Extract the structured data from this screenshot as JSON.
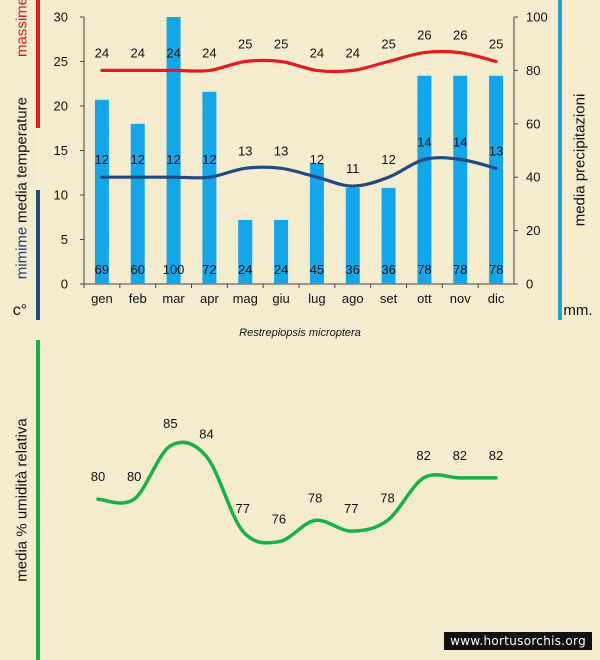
{
  "caption": "Restrepiopsis microptera",
  "credit": "www.hortusorchis.org",
  "climate_chart": {
    "left_axis_labels": {
      "max": "massime",
      "mean": "media  temperature",
      "min": "mimime",
      "unit": "c°"
    },
    "right_axis_labels": {
      "mean": "media  precipitazioni",
      "unit": "mm."
    }
  },
  "humidity_chart": {
    "ylabel": "media %  umidità relativa"
  },
  "colors": {
    "background": "#f7efd2",
    "bars": "#13a7ea",
    "max_line": "#e31d1d",
    "min_line": "#214a83",
    "humidity_line": "#16b246",
    "max_marker": "#d81c1c",
    "min_marker": "#1f3f7a",
    "precip_marker": "#1ea2d8",
    "humidity_marker": "#1eae46"
  },
  "chart_data": [
    {
      "type": "bar",
      "title": "",
      "categories": [
        "gen",
        "feb",
        "mar",
        "apr",
        "mag",
        "giu",
        "lug",
        "ago",
        "set",
        "ott",
        "nov",
        "dic"
      ],
      "series": [
        {
          "name": "precipitazioni (mm)",
          "axis": "right",
          "type": "bar",
          "values": [
            69,
            60,
            100,
            72,
            24,
            24,
            45,
            36,
            36,
            78,
            78,
            78
          ]
        },
        {
          "name": "temperature massime (°C)",
          "axis": "left",
          "type": "line",
          "values": [
            24,
            24,
            24,
            24,
            25,
            25,
            24,
            24,
            25,
            26,
            26,
            25
          ]
        },
        {
          "name": "temperature minime (°C)",
          "axis": "left",
          "type": "line",
          "values": [
            12,
            12,
            12,
            12,
            13,
            13,
            12,
            11,
            12,
            14,
            14,
            13
          ]
        }
      ],
      "ylim_left": [
        0,
        30
      ],
      "yticks_left": [
        0,
        5,
        10,
        15,
        20,
        25,
        30
      ],
      "ylim_right": [
        0,
        100
      ],
      "yticks_right": [
        0,
        20,
        40,
        60,
        80,
        100
      ]
    },
    {
      "type": "line",
      "title": "",
      "categories": [
        "gen",
        "feb",
        "mar",
        "apr",
        "mag",
        "giu",
        "lug",
        "ago",
        "set",
        "ott",
        "nov",
        "dic"
      ],
      "series": [
        {
          "name": "umidità relativa (%)",
          "values": [
            80,
            80,
            85,
            84,
            77,
            76,
            78,
            77,
            78,
            82,
            82,
            82
          ]
        }
      ],
      "ylim": [
        74,
        88
      ]
    }
  ]
}
